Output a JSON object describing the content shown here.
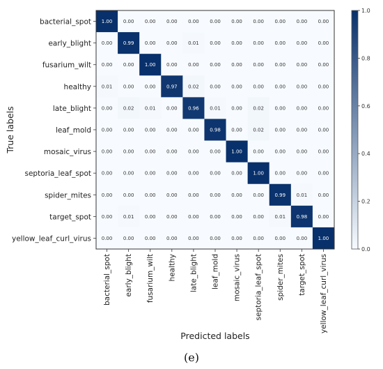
{
  "caption": "(e)",
  "chart_data": {
    "type": "heatmap",
    "title": "",
    "xlabel": "Predicted labels",
    "ylabel": "True labels",
    "x_categories": [
      "bacterial_spot",
      "early_blight",
      "fusarium_wilt",
      "healthy",
      "late_blight",
      "leaf_mold",
      "mosaic_virus",
      "septoria_leaf_spot",
      "spider_mites",
      "target_spot",
      "yellow_leaf_curl_virus"
    ],
    "y_categories": [
      "bacterial_spot",
      "early_blight",
      "fusarium_wilt",
      "healthy",
      "late_blight",
      "leaf_mold",
      "mosaic_virus",
      "septoria_leaf_spot",
      "spider_mites",
      "target_spot",
      "yellow_leaf_curl_virus"
    ],
    "values": [
      [
        1.0,
        0.0,
        0.0,
        0.0,
        0.0,
        0.0,
        0.0,
        0.0,
        0.0,
        0.0,
        0.0
      ],
      [
        0.0,
        0.99,
        0.0,
        0.0,
        0.01,
        0.0,
        0.0,
        0.0,
        0.0,
        0.0,
        0.0
      ],
      [
        0.0,
        0.0,
        1.0,
        0.0,
        0.0,
        0.0,
        0.0,
        0.0,
        0.0,
        0.0,
        0.0
      ],
      [
        0.01,
        0.0,
        0.0,
        0.97,
        0.02,
        0.0,
        0.0,
        0.0,
        0.0,
        0.0,
        0.0
      ],
      [
        0.0,
        0.02,
        0.01,
        0.0,
        0.96,
        0.01,
        0.0,
        0.02,
        0.0,
        0.0,
        0.0
      ],
      [
        0.0,
        0.0,
        0.0,
        0.0,
        0.0,
        0.98,
        0.0,
        0.02,
        0.0,
        0.0,
        0.0
      ],
      [
        0.0,
        0.0,
        0.0,
        0.0,
        0.0,
        0.0,
        1.0,
        0.0,
        0.0,
        0.0,
        0.0
      ],
      [
        0.0,
        0.0,
        0.0,
        0.0,
        0.0,
        0.0,
        0.0,
        1.0,
        0.0,
        0.0,
        0.0
      ],
      [
        0.0,
        0.0,
        0.0,
        0.0,
        0.0,
        0.0,
        0.0,
        0.0,
        0.99,
        0.01,
        0.0
      ],
      [
        0.0,
        0.01,
        0.0,
        0.0,
        0.0,
        0.0,
        0.0,
        0.0,
        0.01,
        0.98,
        0.0
      ],
      [
        0.0,
        0.0,
        0.0,
        0.0,
        0.0,
        0.0,
        0.0,
        0.0,
        0.0,
        0.0,
        1.0
      ]
    ],
    "value_format": "2 decimals",
    "colorscale": {
      "name": "Blues",
      "min": 0.0,
      "max": 1.0,
      "low_color": "#f7fbff",
      "high_color": "#08306b",
      "ticks": [
        "0.0",
        "0.2",
        "0.4",
        "0.6",
        "0.8",
        "1.0"
      ]
    },
    "grid": false,
    "colorbar_position": "right"
  }
}
